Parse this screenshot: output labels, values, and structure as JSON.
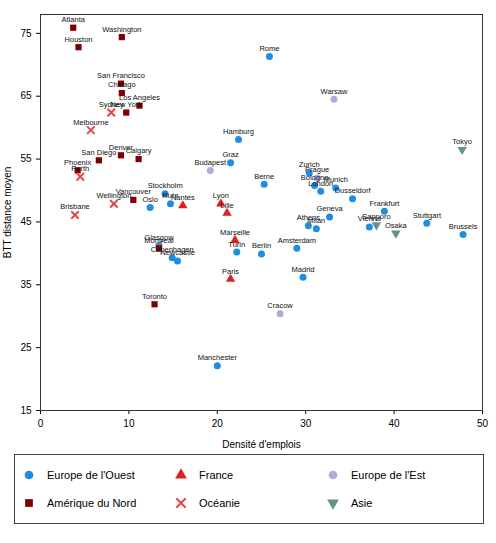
{
  "chart_data": {
    "type": "scatter",
    "x_label": "Densité d'emplois",
    "y_label": "BTT distance moyen",
    "xlim": [
      0,
      50
    ],
    "ylim": [
      15,
      78
    ],
    "xticks": [
      0,
      10,
      20,
      30,
      40,
      50
    ],
    "yticks": [
      15,
      25,
      35,
      45,
      55,
      65,
      75
    ],
    "grid": false,
    "legend": "bottom",
    "series": [
      {
        "name": "Europe de l'Ouest",
        "color": "#1e8fe0",
        "marker": "circle",
        "points": [
          {
            "label": "Rome",
            "x": 25.9,
            "y": 71.3
          },
          {
            "label": "Hamburg",
            "x": 22.4,
            "y": 58.1
          },
          {
            "label": "Graz",
            "x": 21.5,
            "y": 54.4
          },
          {
            "label": "Berne",
            "x": 25.3,
            "y": 51.0
          },
          {
            "label": "Zurich",
            "x": 30.4,
            "y": 52.8
          },
          {
            "label": "Bologna",
            "x": 31.0,
            "y": 50.8
          },
          {
            "label": "Munich",
            "x": 33.4,
            "y": 50.4
          },
          {
            "label": "London",
            "x": 31.7,
            "y": 49.9
          },
          {
            "label": "Dusseldorf",
            "x": 35.3,
            "y": 48.7
          },
          {
            "label": "Frankfurt",
            "x": 38.9,
            "y": 46.7
          },
          {
            "label": "Stuttgart",
            "x": 43.7,
            "y": 44.8
          },
          {
            "label": "Brussels",
            "x": 47.8,
            "y": 43.0
          },
          {
            "label": "Geneva",
            "x": 32.7,
            "y": 45.8
          },
          {
            "label": "Athens",
            "x": 30.3,
            "y": 44.4
          },
          {
            "label": "Milan",
            "x": 31.2,
            "y": 43.9
          },
          {
            "label": "Vienna",
            "x": 37.2,
            "y": 44.2
          },
          {
            "label": "Amsterdam",
            "x": 29.0,
            "y": 40.8
          },
          {
            "label": "Berlin",
            "x": 25.0,
            "y": 39.9
          },
          {
            "label": "Turin",
            "x": 22.2,
            "y": 40.2
          },
          {
            "label": "Madrid",
            "x": 29.7,
            "y": 36.2
          },
          {
            "label": "Manchester",
            "x": 20.0,
            "y": 22.1
          },
          {
            "label": "Stockholm",
            "x": 14.1,
            "y": 49.5
          },
          {
            "label": "Oslo",
            "x": 12.4,
            "y": 47.3
          },
          {
            "label": "Ruhr",
            "x": 14.7,
            "y": 47.9
          },
          {
            "label": "Glasgow",
            "x": 13.4,
            "y": 41.2
          },
          {
            "label": "Copenhagen",
            "x": 14.9,
            "y": 39.3
          },
          {
            "label": "Newcastle",
            "x": 15.5,
            "y": 38.8
          }
        ]
      },
      {
        "name": "France",
        "color": "#e02020",
        "marker": "triangle",
        "points": [
          {
            "label": "Nantes",
            "x": 16.1,
            "y": 47.6
          },
          {
            "label": "Lyon",
            "x": 20.4,
            "y": 47.9
          },
          {
            "label": "Lille",
            "x": 21.1,
            "y": 46.4
          },
          {
            "label": "Marseille",
            "x": 22.0,
            "y": 42.1
          },
          {
            "label": "Paris",
            "x": 21.5,
            "y": 35.9
          }
        ]
      },
      {
        "name": "Europe de l'Est",
        "color": "#b4a8e0",
        "marker": "circle",
        "points": [
          {
            "label": "Budapest",
            "x": 19.2,
            "y": 53.2
          },
          {
            "label": "Warsaw",
            "x": 33.2,
            "y": 64.5
          },
          {
            "label": "Prague",
            "x": 31.3,
            "y": 52.0
          },
          {
            "label": "Cracow",
            "x": 27.1,
            "y": 30.4
          }
        ]
      },
      {
        "name": "Amérique du Nord",
        "color": "#800000",
        "marker": "square",
        "points": [
          {
            "label": "Atlanta",
            "x": 3.7,
            "y": 75.9
          },
          {
            "label": "Houston",
            "x": 4.3,
            "y": 72.8
          },
          {
            "label": "Washington",
            "x": 9.2,
            "y": 74.4
          },
          {
            "label": "San Francisco",
            "x": 9.1,
            "y": 67.0
          },
          {
            "label": "Chicago",
            "x": 9.2,
            "y": 65.5
          },
          {
            "label": "Los Angeles",
            "x": 11.2,
            "y": 63.5
          },
          {
            "label": "New York",
            "x": 9.7,
            "y": 62.4
          },
          {
            "label": "Denver",
            "x": 9.1,
            "y": 55.6
          },
          {
            "label": "Calgary",
            "x": 11.1,
            "y": 55.0
          },
          {
            "label": "San Diego",
            "x": 6.6,
            "y": 54.8
          },
          {
            "label": "Phoenix",
            "x": 4.2,
            "y": 53.2
          },
          {
            "label": "Vancouver",
            "x": 10.5,
            "y": 48.5
          },
          {
            "label": "Montreal",
            "x": 13.4,
            "y": 40.8
          },
          {
            "label": "Toronto",
            "x": 12.9,
            "y": 31.9
          }
        ]
      },
      {
        "name": "Océanie",
        "color": "#e04848",
        "marker": "times",
        "points": [
          {
            "label": "Melbourne",
            "x": 5.7,
            "y": 59.6
          },
          {
            "label": "Sydney",
            "x": 8.0,
            "y": 62.4
          },
          {
            "label": "Perth",
            "x": 4.5,
            "y": 52.2
          },
          {
            "label": "Brisbane",
            "x": 3.9,
            "y": 46.1
          },
          {
            "label": "Wellington",
            "x": 8.3,
            "y": 47.9
          }
        ]
      },
      {
        "name": "Asie",
        "color": "#5f9488",
        "marker": "triangle-down",
        "points": [
          {
            "label": "Tokyo",
            "x": 47.7,
            "y": 56.5
          },
          {
            "label": "Sapporo",
            "x": 38.0,
            "y": 44.5
          },
          {
            "label": "Osaka",
            "x": 40.2,
            "y": 43.2
          }
        ]
      }
    ]
  }
}
